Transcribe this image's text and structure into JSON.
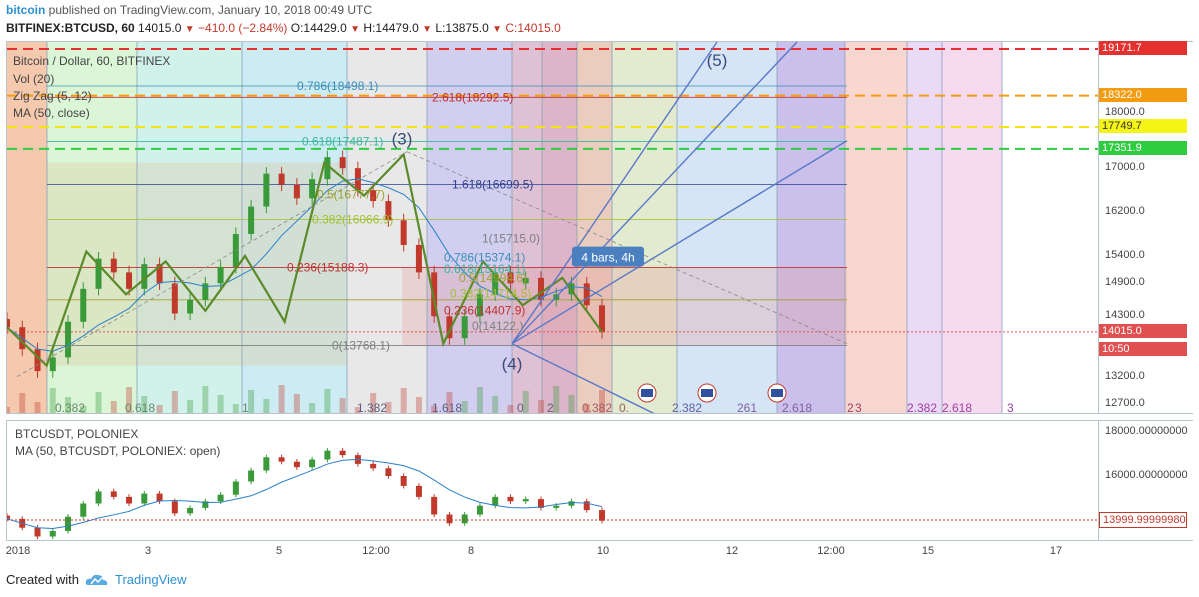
{
  "header": {
    "author": "bitcoin",
    "published": "published on TradingView.com, January 10, 2018 00:49 UTC",
    "symbol": "BITFINEX:BTCUSD, 60",
    "last": "14015.0",
    "change": "−410.0 (−2.84%)",
    "open": "O:14429.0",
    "high": "H:14479.0",
    "low": "L:13875.0",
    "close": "C:14015.0"
  },
  "main_legend": {
    "title": "Bitcoin / Dollar, 60, BITFINEX",
    "vol": "Vol (20)",
    "zigzag": "Zig Zag (5, 12)",
    "ma": "MA (50, close)"
  },
  "sub_legend": {
    "title": "BTCUSDT, POLONIEX",
    "ma": "MA (50, BTCUSDT, POLONIEX: open)"
  },
  "colors": {
    "up": "#3a9a3a",
    "down": "#c0392b",
    "zigzag": "#5a8a2a",
    "ma_line": "#2a7fc8",
    "accent": "#2e8fd0"
  },
  "main_price_ticks": [
    "18000.0",
    "17000.0",
    "16200.0",
    "15400.0",
    "14900.0",
    "14300.0",
    "13200.0",
    "12700.0"
  ],
  "sub_price_ticks": [
    "18000.00000000",
    "16000.00000000"
  ],
  "price_labels": [
    {
      "text": "19171.7",
      "bg": "#e53030",
      "fg": "#ffffff"
    },
    {
      "text": "18322.0",
      "bg": "#f39c12",
      "fg": "#ffffff"
    },
    {
      "text": "17749.7",
      "bg": "#f4f416",
      "fg": "#333333"
    },
    {
      "text": "17351.9",
      "bg": "#2ecc40",
      "fg": "#ffffff"
    },
    {
      "text": "14015.0",
      "bg": "#e05050",
      "fg": "#ffffff"
    },
    {
      "text": "10:50",
      "bg": "#e05050",
      "fg": "#ffffff"
    },
    {
      "text": "13999.99999980",
      "bg": "#ffffff",
      "fg": "#c0392b"
    }
  ],
  "time_ticks": [
    "2018",
    "3",
    "5",
    "12:00",
    "8",
    "10",
    "12",
    "12:00",
    "15",
    "17"
  ],
  "fib_labels_top": [
    "0.786(18498.1)",
    "2.618(18292.5)",
    "0.618(17487.1)",
    "1.618(16699.5)",
    "0.5(16777.7)",
    "0.382(16066.9)",
    "1(15715.0)",
    "0.236(15188.3)",
    "0.786(15374.1)",
    "0.618(15164.1)",
    "0.5(14994.6)",
    "0.382(14714.5)",
    "0.236(14407.9)",
    "0(14122.)",
    "0(13768.1)"
  ],
  "time_fib_labels": [
    "0.382",
    "0.618",
    "1",
    "1.382",
    "1.618",
    "0",
    "2",
    "0.382",
    "0.",
    "2.382",
    "261",
    "2.618",
    "2",
    "3",
    "2.382",
    "2.618",
    "3"
  ],
  "wave_labels": [
    "(3)",
    "(4)",
    "(5)"
  ],
  "tooltip": "4 bars, 4h",
  "footer": {
    "created": "Created with",
    "brand": "TradingView"
  },
  "chart_data": {
    "type": "candlestick",
    "title": "Bitcoin / Dollar, 60, BITFINEX",
    "ylim": [
      12500,
      19300
    ],
    "x_dates": [
      "2018-01-01",
      "2018-01-10"
    ],
    "horizontal_levels": [
      19171.7,
      18322.0,
      17749.7,
      17351.9
    ],
    "zigzag_points": [
      {
        "label": "",
        "price": 14100
      },
      {
        "label": "",
        "price": 13400
      },
      {
        "label": "",
        "price": 15480
      },
      {
        "label": "",
        "price": 14700
      },
      {
        "label": "",
        "price": 15300
      },
      {
        "label": "",
        "price": 14400
      },
      {
        "label": "",
        "price": 15400
      },
      {
        "label": "",
        "price": 14200
      },
      {
        "label": "",
        "price": 17100
      },
      {
        "label": "",
        "price": 16500
      },
      {
        "label": "(3)",
        "price": 17250
      },
      {
        "label": "(4)",
        "price": 13800
      },
      {
        "label": "",
        "price": 15300
      },
      {
        "label": "",
        "price": 14500
      },
      {
        "label": "",
        "price": 15000
      },
      {
        "label": "",
        "price": 14015
      }
    ],
    "close_path": [
      14100,
      13700,
      13300,
      13550,
      14200,
      14800,
      15350,
      15100,
      14800,
      15250,
      14900,
      14350,
      14600,
      14900,
      15200,
      15800,
      16300,
      16900,
      16700,
      16450,
      16800,
      17200,
      17000,
      16600,
      16400,
      16050,
      15600,
      15100,
      14300,
      13900,
      14300,
      14700,
      15100,
      14900,
      15000,
      14600,
      14700,
      14900,
      14500,
      14015
    ],
    "sub_series": {
      "name": "BTCUSDT, POLONIEX",
      "ylim": [
        13000,
        18500
      ],
      "last": 13999.9999998
    }
  }
}
